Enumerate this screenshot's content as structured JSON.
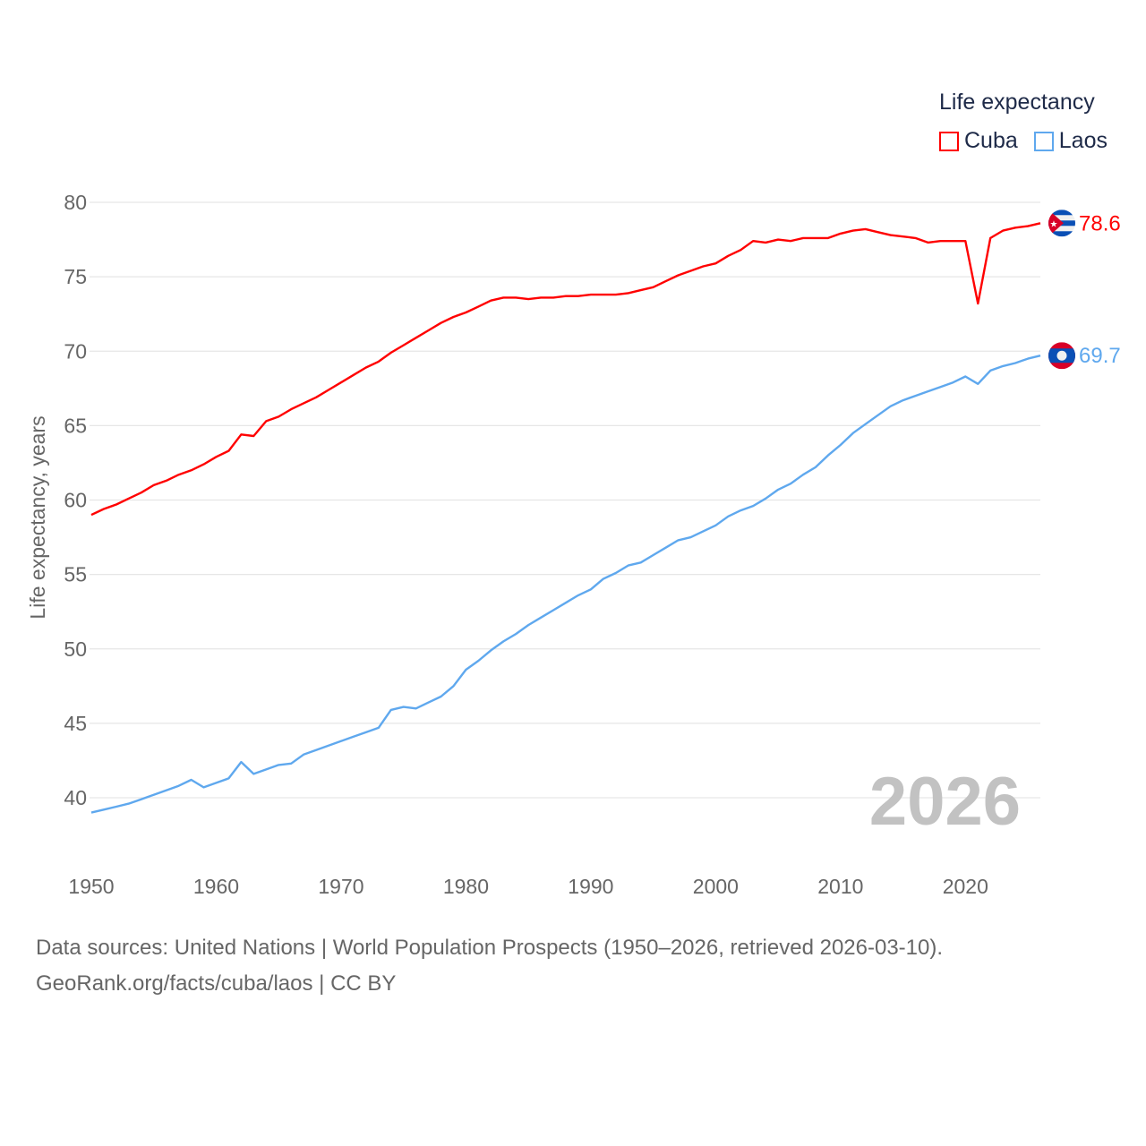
{
  "chart_data": {
    "type": "line",
    "title": "Life expectancy",
    "ylabel": "Life expectancy, years",
    "xlabel": "",
    "xlim": [
      1950,
      2026
    ],
    "ylim": [
      37.5,
      81
    ],
    "x_ticks": [
      1950,
      1960,
      1970,
      1980,
      1990,
      2000,
      2010,
      2020
    ],
    "y_ticks": [
      40,
      45,
      50,
      55,
      60,
      65,
      70,
      75,
      80
    ],
    "grid": true,
    "legend_position": "top-right",
    "year_watermark": "2026",
    "x": [
      1950,
      1951,
      1952,
      1953,
      1954,
      1955,
      1956,
      1957,
      1958,
      1959,
      1960,
      1961,
      1962,
      1963,
      1964,
      1965,
      1966,
      1967,
      1968,
      1969,
      1970,
      1971,
      1972,
      1973,
      1974,
      1975,
      1976,
      1977,
      1978,
      1979,
      1980,
      1981,
      1982,
      1983,
      1984,
      1985,
      1986,
      1987,
      1988,
      1989,
      1990,
      1991,
      1992,
      1993,
      1994,
      1995,
      1996,
      1997,
      1998,
      1999,
      2000,
      2001,
      2002,
      2003,
      2004,
      2005,
      2006,
      2007,
      2008,
      2009,
      2010,
      2011,
      2012,
      2013,
      2014,
      2015,
      2016,
      2017,
      2018,
      2019,
      2020,
      2021,
      2022,
      2023,
      2024,
      2025,
      2026
    ],
    "series": [
      {
        "name": "Cuba",
        "color": "#ff0000",
        "end_label": "78.6",
        "values": [
          59.0,
          59.4,
          59.7,
          60.1,
          60.5,
          61.0,
          61.3,
          61.7,
          62.0,
          62.4,
          62.9,
          63.3,
          64.4,
          64.3,
          65.3,
          65.6,
          66.1,
          66.5,
          66.9,
          67.4,
          67.9,
          68.4,
          68.9,
          69.3,
          69.9,
          70.4,
          70.9,
          71.4,
          71.9,
          72.3,
          72.6,
          73.0,
          73.4,
          73.6,
          73.6,
          73.5,
          73.6,
          73.6,
          73.7,
          73.7,
          73.8,
          73.8,
          73.8,
          73.9,
          74.1,
          74.3,
          74.7,
          75.1,
          75.4,
          75.7,
          75.9,
          76.4,
          76.8,
          77.4,
          77.3,
          77.5,
          77.4,
          77.6,
          77.6,
          77.6,
          77.9,
          78.1,
          78.2,
          78.0,
          77.8,
          77.7,
          77.6,
          77.3,
          77.4,
          77.4,
          77.4,
          73.2,
          77.6,
          78.1,
          78.3,
          78.4,
          78.6
        ]
      },
      {
        "name": "Laos",
        "color": "#5fa8ee",
        "end_label": "69.7",
        "values": [
          39.0,
          39.2,
          39.4,
          39.6,
          39.9,
          40.2,
          40.5,
          40.8,
          41.2,
          40.7,
          41.0,
          41.3,
          42.4,
          41.6,
          41.9,
          42.2,
          42.3,
          42.9,
          43.2,
          43.5,
          43.8,
          44.1,
          44.4,
          44.7,
          45.9,
          46.1,
          46.0,
          46.4,
          46.8,
          47.5,
          48.6,
          49.2,
          49.9,
          50.5,
          51.0,
          51.6,
          52.1,
          52.6,
          53.1,
          53.6,
          54.0,
          54.7,
          55.1,
          55.6,
          55.8,
          56.3,
          56.8,
          57.3,
          57.5,
          57.9,
          58.3,
          58.9,
          59.3,
          59.6,
          60.1,
          60.7,
          61.1,
          61.7,
          62.2,
          63.0,
          63.7,
          64.5,
          65.1,
          65.7,
          66.3,
          66.7,
          67.0,
          67.3,
          67.6,
          67.9,
          68.3,
          67.8,
          68.7,
          69.0,
          69.2,
          69.5,
          69.7
        ]
      }
    ]
  },
  "footer": {
    "line1": "Data sources: United Nations | World Population Prospects (1950–2026, retrieved 2026-03-10).",
    "line2": "GeoRank.org/facts/cuba/laos | CC BY"
  }
}
